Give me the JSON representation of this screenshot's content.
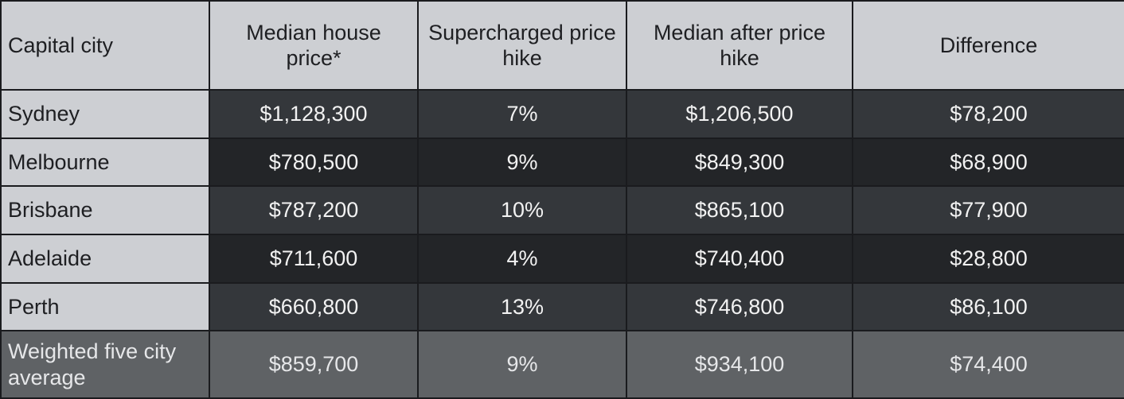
{
  "table": {
    "headers": [
      "Capital city",
      "Median house price*",
      "Supercharged price hike",
      "Median after price hike",
      "Difference"
    ],
    "rows": [
      [
        "Sydney",
        "$1,128,300",
        "7%",
        "$1,206,500",
        "$78,200"
      ],
      [
        "Melbourne",
        "$780,500",
        "9%",
        "$849,300",
        "$68,900"
      ],
      [
        "Brisbane",
        "$787,200",
        "10%",
        "$865,100",
        "$77,900"
      ],
      [
        "Adelaide",
        "$711,600",
        "4%",
        "$740,400",
        "$28,800"
      ],
      [
        "Perth",
        "$660,800",
        "13%",
        "$746,800",
        "$86,100"
      ]
    ],
    "average_row": [
      "Weighted five city average",
      "$859,700",
      "9%",
      "$934,100",
      "$74,400"
    ]
  }
}
